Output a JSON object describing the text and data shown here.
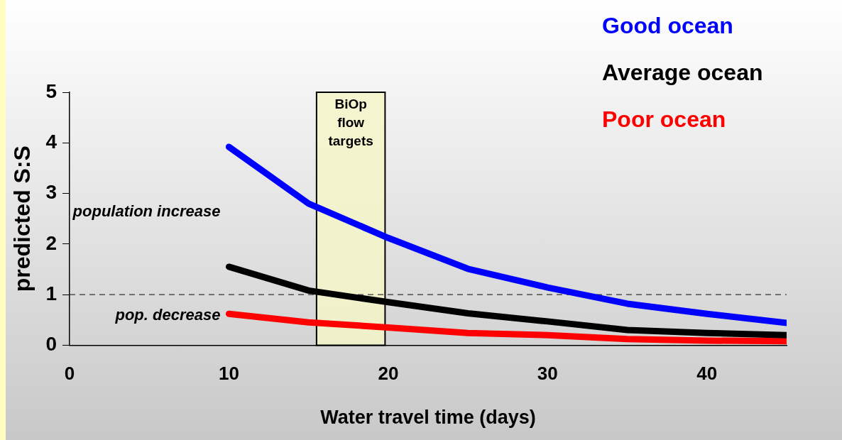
{
  "chart_data": {
    "type": "line",
    "xlabel": "Water travel time (days)",
    "ylabel": "predicted S:S",
    "x": [
      10,
      15,
      20,
      25,
      30,
      35,
      40,
      45
    ],
    "series": [
      {
        "name": "Good ocean",
        "color": "#0000ff",
        "values": [
          3.92,
          2.8,
          2.12,
          1.51,
          1.14,
          0.82,
          0.62,
          0.44
        ]
      },
      {
        "name": "Average ocean",
        "color": "#000000",
        "values": [
          1.55,
          1.08,
          0.85,
          0.63,
          0.47,
          0.3,
          0.24,
          0.2
        ]
      },
      {
        "name": "Poor ocean",
        "color": "#ff0000",
        "values": [
          0.62,
          0.45,
          0.35,
          0.24,
          0.2,
          0.12,
          0.09,
          0.08
        ]
      }
    ],
    "xlim": [
      0,
      45
    ],
    "xticks": [
      0,
      10,
      20,
      30,
      40
    ],
    "ylim": [
      0,
      5
    ],
    "yticks": [
      0,
      1,
      2,
      3,
      4,
      5
    ],
    "ref_lines": [
      {
        "axis": "y",
        "value": 1,
        "line_style": "dashed",
        "color": "#333333"
      }
    ],
    "bands": [
      {
        "axis": "x",
        "from": 15.5,
        "to": 19.8,
        "label": "BiOp flow targets",
        "color": "#f5f5c8"
      }
    ],
    "annotations": [
      "population increase",
      "pop. decrease"
    ],
    "grid": false,
    "legend": "top right",
    "marker": "none",
    "line_style": "solid"
  }
}
